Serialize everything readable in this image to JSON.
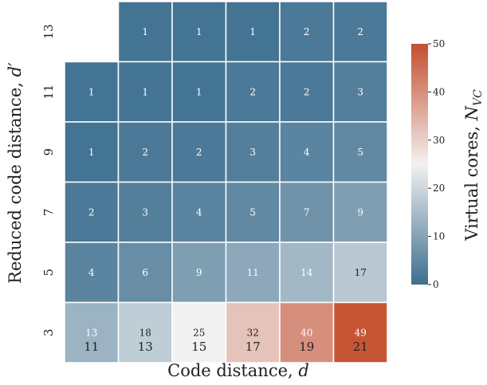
{
  "chart_data": {
    "type": "heatmap",
    "x_categories": [
      "11",
      "13",
      "15",
      "17",
      "19",
      "21"
    ],
    "y_categories": [
      "13",
      "11",
      "9",
      "7",
      "5",
      "3"
    ],
    "values": [
      [
        null,
        1,
        1,
        1,
        2,
        2
      ],
      [
        1,
        1,
        1,
        2,
        2,
        3
      ],
      [
        1,
        2,
        2,
        3,
        4,
        5
      ],
      [
        2,
        3,
        4,
        5,
        7,
        9
      ],
      [
        4,
        6,
        9,
        11,
        14,
        17
      ],
      [
        13,
        18,
        25,
        32,
        40,
        49
      ]
    ],
    "xlabel_text": "Code distance, ",
    "xlabel_var": "d",
    "ylabel_text": "Reduced code distance, ",
    "ylabel_var": "d′",
    "colorbar_label_text": "Virtual cores, ",
    "colorbar_label_var": "N",
    "colorbar_label_sub": "VC",
    "colorbar_range": [
      0,
      50
    ],
    "colorbar_ticks": [
      "0",
      "10",
      "20",
      "30",
      "40",
      "50"
    ],
    "colormap": {
      "low": "#3d6f8f",
      "mid": "#f2f1f1",
      "high": "#c44e2e"
    },
    "grid": false
  }
}
